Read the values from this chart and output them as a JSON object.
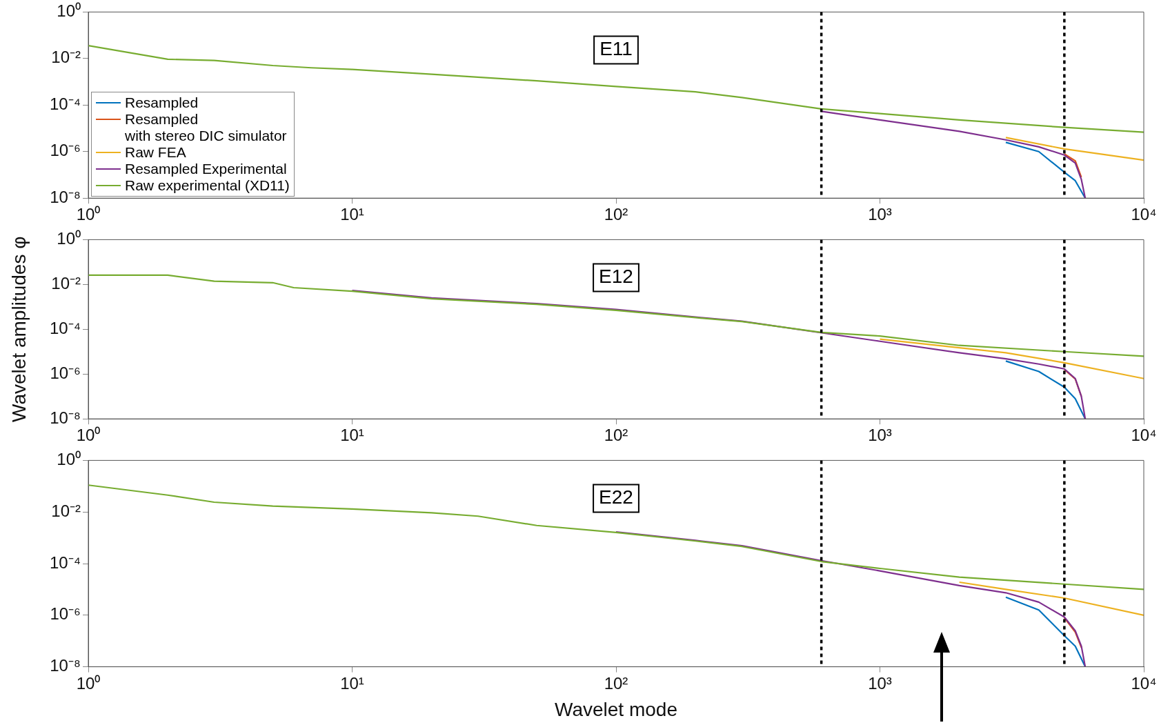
{
  "chart_data": [
    {
      "type": "line",
      "annotations": [
        "E11"
      ],
      "log": "xy",
      "grid": false,
      "legend": "bottom left",
      "line_style": "solid",
      "xlim": [
        1,
        10000
      ],
      "xticks": [
        {
          "value": 1,
          "label": "10⁰"
        },
        {
          "value": 10,
          "label": "10¹"
        },
        {
          "value": 100,
          "label": "10²"
        },
        {
          "value": 1000,
          "label": "10³"
        },
        {
          "value": 10000,
          "label": "10⁴"
        }
      ],
      "ylim": [
        1e-08,
        1
      ],
      "yticks": [
        {
          "value": 1e-08,
          "label": "10⁻⁸"
        },
        {
          "value": 1e-06,
          "label": "10⁻⁶"
        },
        {
          "value": 0.0001,
          "label": "10⁻⁴"
        },
        {
          "value": 0.01,
          "label": "10⁻²"
        },
        {
          "value": 1,
          "label": "10⁰"
        }
      ],
      "ref_lines": [
        {
          "axis": "x",
          "value": 600,
          "color": "#000000",
          "line_style": "dotted"
        },
        {
          "axis": "x",
          "value": 5000,
          "color": "#000000",
          "line_style": "dotted"
        }
      ],
      "series": [
        {
          "name": "Resampled",
          "color": "#0072bd",
          "x": [
            3000,
            4000,
            5000,
            5500,
            6000
          ],
          "values": [
            2.5e-06,
            1e-06,
            1.3e-07,
            5.6e-08,
            1e-08
          ]
        },
        {
          "name": "Resampled\nwith stereo DIC simulator",
          "color": "#d95319",
          "x": [
            5000,
            5500,
            5800
          ],
          "values": [
            7.9e-07,
            4e-07,
            7.9e-08
          ]
        },
        {
          "name": "Raw FEA",
          "color": "#edb120",
          "x": [
            3000,
            5000,
            10000
          ],
          "values": [
            4e-06,
            1.3e-06,
            4.3e-07
          ]
        },
        {
          "name": "Resampled Experimental",
          "color": "#7e2f8e",
          "x": [
            600,
            1000,
            2000,
            3000,
            4000,
            5000,
            5500,
            5800,
            6000
          ],
          "values": [
            5.4e-05,
            2.3e-05,
            7.4e-06,
            3.2e-06,
            1.6e-06,
            7.1e-07,
            3.2e-07,
            6.3e-08,
            1e-08
          ]
        },
        {
          "name": "Raw experimental (XD11)",
          "color": "#77ac30",
          "x": [
            1,
            2,
            3,
            5,
            7,
            10,
            20,
            50,
            100,
            200,
            300,
            600,
            1000,
            2000,
            5000,
            10000
          ],
          "values": [
            0.036,
            0.0093,
            0.0083,
            0.005,
            0.004,
            0.0034,
            0.0021,
            0.0011,
            0.00063,
            0.00037,
            0.00021,
            6.8e-05,
            4.3e-05,
            2.3e-05,
            1.1e-05,
            6.8e-06
          ]
        }
      ]
    },
    {
      "type": "line",
      "annotations": [
        "E12"
      ],
      "log": "xy",
      "grid": false,
      "ylabel": "Wavelet amplitudes φ",
      "line_style": "solid",
      "xlim": [
        1,
        10000
      ],
      "xticks": [
        {
          "value": 1,
          "label": "10⁰"
        },
        {
          "value": 10,
          "label": "10¹"
        },
        {
          "value": 100,
          "label": "10²"
        },
        {
          "value": 1000,
          "label": "10³"
        },
        {
          "value": 10000,
          "label": "10⁴"
        }
      ],
      "ylim": [
        1e-08,
        1
      ],
      "yticks": [
        {
          "value": 1e-08,
          "label": "10⁻⁸"
        },
        {
          "value": 1e-06,
          "label": "10⁻⁶"
        },
        {
          "value": 0.0001,
          "label": "10⁻⁴"
        },
        {
          "value": 0.01,
          "label": "10⁻²"
        },
        {
          "value": 1,
          "label": "10⁰"
        }
      ],
      "ref_lines": [
        {
          "axis": "x",
          "value": 600,
          "color": "#000000",
          "line_style": "dotted"
        },
        {
          "axis": "x",
          "value": 5000,
          "color": "#000000",
          "line_style": "dotted"
        }
      ],
      "series": [
        {
          "color": "#0072bd",
          "x": [
            3000,
            4000,
            5000,
            5500,
            6000
          ],
          "values": [
            3.8e-06,
            1.3e-06,
            2.6e-07,
            7.9e-08,
            1e-08
          ]
        },
        {
          "color": "#d95319",
          "x": [
            5000,
            5500,
            5800
          ],
          "values": [
            1.6e-06,
            6e-07,
            1e-07
          ]
        },
        {
          "color": "#edb120",
          "x": [
            1000,
            2000,
            3000,
            5000,
            10000
          ],
          "values": [
            3.6e-05,
            1.5e-05,
            8.9e-06,
            3.2e-06,
            6.3e-07
          ]
        },
        {
          "color": "#7e2f8e",
          "x": [
            10,
            20,
            50,
            100,
            200,
            300,
            1000,
            2000,
            3000,
            4000,
            5000,
            5500,
            5800,
            6000
          ],
          "values": [
            0.0054,
            0.0025,
            0.0014,
            0.00076,
            0.00035,
            0.00023,
            2.9e-05,
            8.9e-06,
            4.8e-06,
            2.8e-06,
            1.7e-06,
            6.3e-07,
            1e-07,
            1e-08
          ]
        },
        {
          "color": "#77ac30",
          "x": [
            1,
            2,
            3,
            5,
            6,
            10,
            20,
            50,
            100,
            200,
            300,
            600,
            1000,
            2000,
            5000,
            10000
          ],
          "values": [
            0.026,
            0.026,
            0.014,
            0.012,
            0.0072,
            0.005,
            0.0023,
            0.0013,
            0.0007,
            0.00033,
            0.00022,
            7.2e-05,
            5e-05,
            1.9e-05,
            1e-05,
            6.3e-06
          ]
        }
      ]
    },
    {
      "type": "line",
      "annotations": [
        "E22"
      ],
      "log": "xy",
      "grid": false,
      "xlabel": "Wavelet mode",
      "line_style": "solid",
      "xlim": [
        1,
        10000
      ],
      "xticks": [
        {
          "value": 1,
          "label": "10⁰"
        },
        {
          "value": 10,
          "label": "10¹"
        },
        {
          "value": 100,
          "label": "10²"
        },
        {
          "value": 1000,
          "label": "10³"
        },
        {
          "value": 10000,
          "label": "10⁴"
        }
      ],
      "ylim": [
        1e-08,
        1
      ],
      "yticks": [
        {
          "value": 1e-08,
          "label": "10⁻⁸"
        },
        {
          "value": 1e-06,
          "label": "10⁻⁶"
        },
        {
          "value": 0.0001,
          "label": "10⁻⁴"
        },
        {
          "value": 0.01,
          "label": "10⁻²"
        },
        {
          "value": 1,
          "label": "10⁰"
        }
      ],
      "ref_lines": [
        {
          "axis": "x",
          "value": 600,
          "color": "#000000",
          "line_style": "dotted"
        },
        {
          "axis": "x",
          "value": 5000,
          "color": "#000000",
          "line_style": "dotted"
        }
      ],
      "series": [
        {
          "color": "#0072bd",
          "x": [
            3000,
            4000,
            5000,
            5500,
            6000
          ],
          "values": [
            5e-06,
            1.6e-06,
            1.6e-07,
            6.3e-08,
            1e-08
          ]
        },
        {
          "color": "#d95319",
          "x": [
            5000,
            5500,
            5800
          ],
          "values": [
            7.9e-07,
            2.2e-07,
            5.6e-08
          ]
        },
        {
          "color": "#edb120",
          "x": [
            2000,
            3000,
            5000,
            10000
          ],
          "values": [
            1.9e-05,
            1e-05,
            4.6e-06,
            1e-06
          ]
        },
        {
          "color": "#7e2f8e",
          "x": [
            100,
            200,
            300,
            600,
            1000,
            2000,
            3000,
            4000,
            5000,
            5500,
            5800,
            6000
          ],
          "values": [
            0.0017,
            0.00079,
            0.00049,
            0.00013,
            5.2e-05,
            1.4e-05,
            7.4e-06,
            3.2e-06,
            8.5e-07,
            2.5e-07,
            6.3e-08,
            1e-08
          ]
        },
        {
          "color": "#77ac30",
          "x": [
            1,
            2,
            3,
            5,
            10,
            20,
            30,
            50,
            100,
            200,
            300,
            600,
            1000,
            2000,
            5000,
            10000
          ],
          "values": [
            0.11,
            0.045,
            0.024,
            0.017,
            0.013,
            0.0093,
            0.0069,
            0.003,
            0.0016,
            0.00075,
            0.00046,
            0.00012,
            6.5e-05,
            3e-05,
            1.6e-05,
            1e-05
          ]
        }
      ]
    }
  ]
}
